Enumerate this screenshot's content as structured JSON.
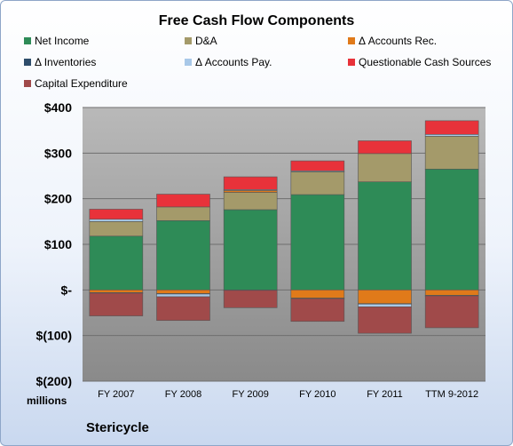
{
  "chart_data": {
    "type": "bar",
    "stacked": true,
    "title": "Free Cash Flow Components",
    "units_label": "millions",
    "footer": "Stericycle",
    "categories": [
      "FY 2007",
      "FY 2008",
      "FY 2009",
      "FY 2010",
      "FY 2011",
      "TTM 9-2012"
    ],
    "ylim": [
      -200,
      400
    ],
    "yticks": [
      -200,
      -100,
      0,
      100,
      200,
      300,
      400
    ],
    "ytick_labels": [
      "$(200)",
      "$(100)",
      "$-",
      "$100",
      "$200",
      "$300",
      "$400"
    ],
    "legend_position": "top",
    "series": [
      {
        "name": "Net Income",
        "color": "#2e8b57",
        "values": [
          118,
          152,
          176,
          209,
          237,
          265
        ]
      },
      {
        "name": "D&A",
        "color": "#a49a6a",
        "values": [
          32,
          30,
          38,
          50,
          62,
          72
        ]
      },
      {
        "name": "Δ Accounts Rec.",
        "color": "#e07a1a",
        "values": [
          -6,
          -8,
          4,
          -18,
          -30,
          -12
        ]
      },
      {
        "name": "Δ Inventories",
        "color": "#2e4d6b",
        "values": [
          -1,
          -1,
          -1,
          -1,
          -1,
          -1
        ]
      },
      {
        "name": "Δ Accounts Pay.",
        "color": "#a8c8e8",
        "values": [
          5,
          -6,
          2,
          2,
          -6,
          4
        ]
      },
      {
        "name": "Questionable Cash Sources",
        "color": "#e8323a",
        "values": [
          22,
          28,
          28,
          22,
          28,
          30
        ]
      },
      {
        "name": "Capital Expenditure",
        "color": "#a04a4a",
        "values": [
          -50,
          -52,
          -38,
          -50,
          -58,
          -70
        ]
      }
    ]
  }
}
